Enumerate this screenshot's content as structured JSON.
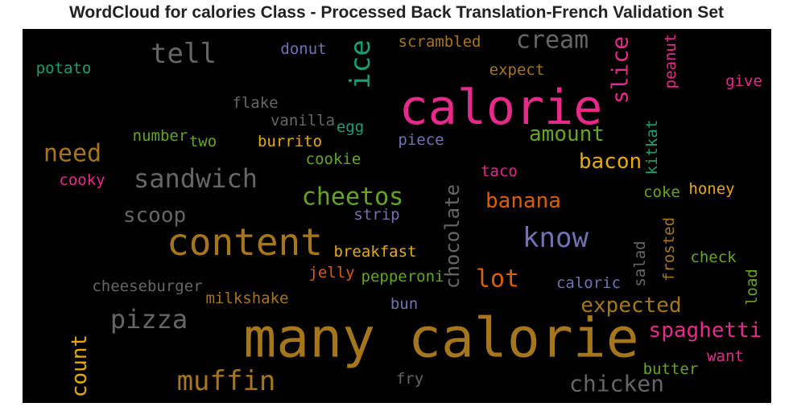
{
  "title": "WordCloud for calories Class - Processed Back Translation-French Validation Set",
  "background": "#000000",
  "palette": {
    "pink": "#e7298a",
    "gold": "#a6761d",
    "gray": "#666666",
    "green": "#66a61e",
    "orange": "#d95f02",
    "purple": "#7570b3",
    "teal": "#1b9e77",
    "yellow": "#e6ab02"
  },
  "chart_data": {
    "type": "wordcloud",
    "words": [
      {
        "text": "many calorie",
        "color": "gold"
      },
      {
        "text": "calorie",
        "color": "pink"
      },
      {
        "text": "content",
        "color": "gold"
      },
      {
        "text": "tell",
        "color": "gray"
      },
      {
        "text": "cream",
        "color": "gray"
      },
      {
        "text": "ice",
        "color": "teal"
      },
      {
        "text": "slice",
        "color": "pink"
      },
      {
        "text": "need",
        "color": "gold"
      },
      {
        "text": "sandwich",
        "color": "gray"
      },
      {
        "text": "know",
        "color": "purple"
      },
      {
        "text": "muffin",
        "color": "gold"
      },
      {
        "text": "pizza",
        "color": "gray"
      },
      {
        "text": "cheetos",
        "color": "green"
      },
      {
        "text": "amount",
        "color": "green"
      },
      {
        "text": "bacon",
        "color": "yellow"
      },
      {
        "text": "chocolate",
        "color": "gray"
      },
      {
        "text": "lot",
        "color": "orange"
      },
      {
        "text": "spaghetti",
        "color": "pink"
      },
      {
        "text": "chicken",
        "color": "gray"
      },
      {
        "text": "scoop",
        "color": "gray"
      },
      {
        "text": "banana",
        "color": "orange"
      },
      {
        "text": "count",
        "color": "yellow"
      },
      {
        "text": "expected",
        "color": "gold"
      },
      {
        "text": "potato",
        "color": "teal"
      },
      {
        "text": "donut",
        "color": "purple"
      },
      {
        "text": "scrambled",
        "color": "gold"
      },
      {
        "text": "expect",
        "color": "gold"
      },
      {
        "text": "peanut",
        "color": "pink"
      },
      {
        "text": "give",
        "color": "pink"
      },
      {
        "text": "flake",
        "color": "gray"
      },
      {
        "text": "vanilla",
        "color": "gray"
      },
      {
        "text": "egg",
        "color": "teal"
      },
      {
        "text": "number",
        "color": "green"
      },
      {
        "text": "two",
        "color": "green"
      },
      {
        "text": "burrito",
        "color": "yellow"
      },
      {
        "text": "piece",
        "color": "purple"
      },
      {
        "text": "kitkat",
        "color": "teal"
      },
      {
        "text": "cookie",
        "color": "green"
      },
      {
        "text": "cooky",
        "color": "pink"
      },
      {
        "text": "taco",
        "color": "pink"
      },
      {
        "text": "coke",
        "color": "green"
      },
      {
        "text": "honey",
        "color": "yellow"
      },
      {
        "text": "strip",
        "color": "purple"
      },
      {
        "text": "frosted",
        "color": "gold"
      },
      {
        "text": "breakfast",
        "color": "yellow"
      },
      {
        "text": "salad",
        "color": "gray"
      },
      {
        "text": "check",
        "color": "green"
      },
      {
        "text": "load",
        "color": "green"
      },
      {
        "text": "jelly",
        "color": "orange"
      },
      {
        "text": "pepperoni",
        "color": "green"
      },
      {
        "text": "cheeseburger",
        "color": "gray"
      },
      {
        "text": "caloric",
        "color": "purple"
      },
      {
        "text": "milkshake",
        "color": "gold"
      },
      {
        "text": "bun",
        "color": "purple"
      },
      {
        "text": "want",
        "color": "pink"
      },
      {
        "text": "butter",
        "color": "green"
      },
      {
        "text": "fry",
        "color": "gray"
      }
    ]
  }
}
